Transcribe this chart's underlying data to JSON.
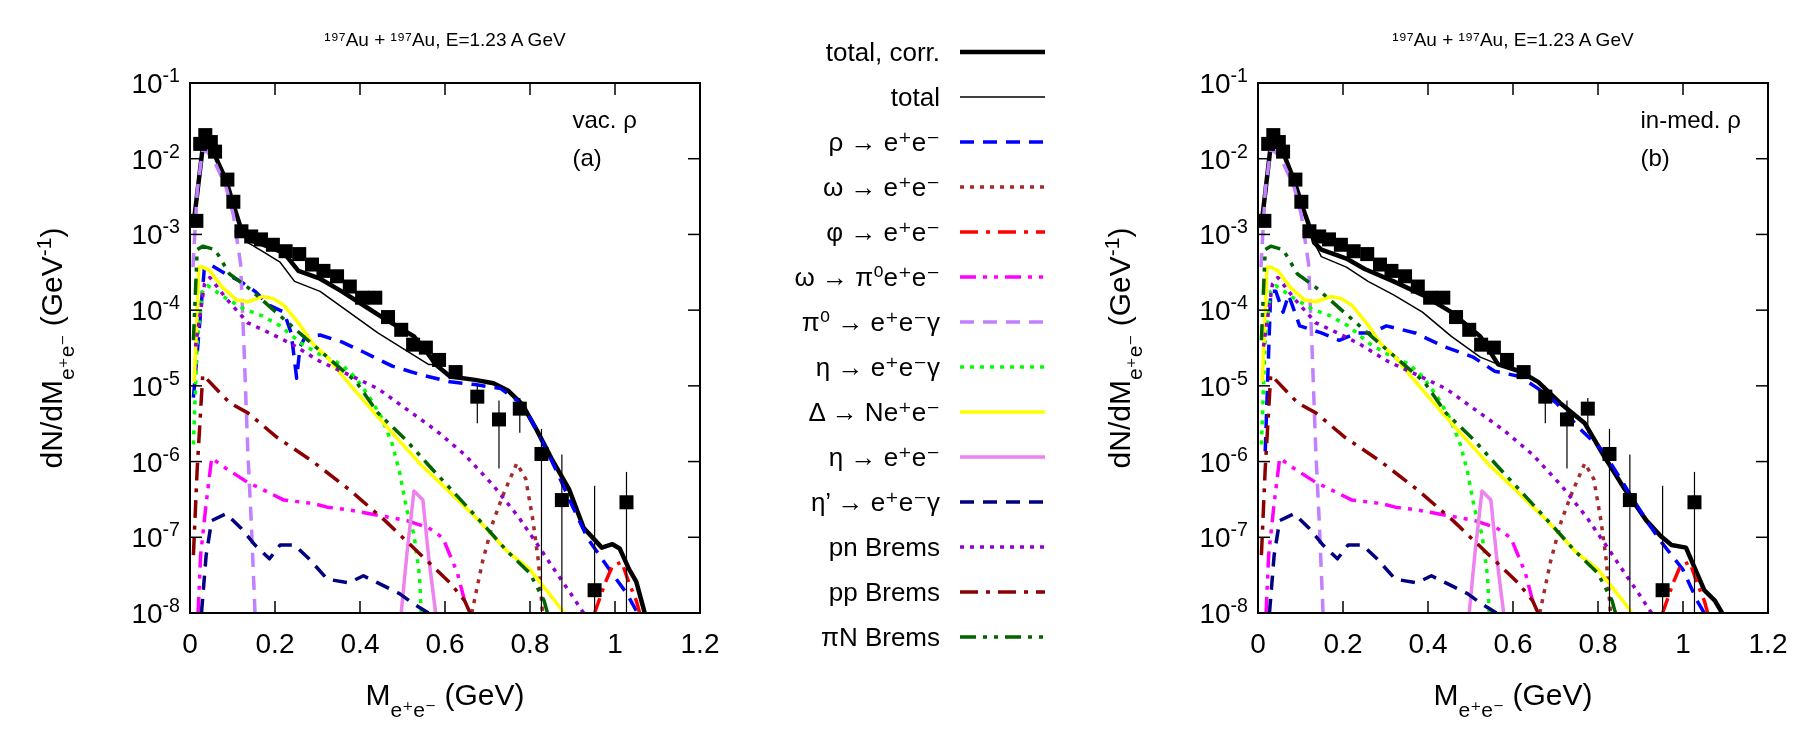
{
  "chart_data": [
    {
      "type": "line",
      "title": "¹⁹⁷Au + ¹⁹⁷Au, E=1.23 A GeV",
      "xlabel": "M$_{e⁺e⁻}$ (GeV)",
      "ylabel": "dN/dM$_{e⁺e⁻}$ (GeV$^{-1}$)",
      "log": "y",
      "legend": "right",
      "xlim": [
        0,
        1.2
      ],
      "ylim": [
        1e-08,
        0.1
      ],
      "xticks": [
        0,
        0.2,
        0.4,
        0.6,
        0.8,
        1,
        1.2
      ],
      "yticks": [
        {
          "value": 1e-08,
          "label": "10$^{-8}$"
        },
        {
          "value": 1e-07,
          "label": "10$^{-7}$"
        },
        {
          "value": 1e-06,
          "label": "10$^{-6}$"
        },
        {
          "value": 1e-05,
          "label": "10$^{-5}$"
        },
        {
          "value": 0.0001,
          "label": "10$^{-4}$"
        },
        {
          "value": 0.001,
          "label": "10$^{-3}$"
        },
        {
          "value": 0.01,
          "label": "10$^{-2}$"
        },
        {
          "value": 0.1,
          "label": "10$^{-1}$"
        }
      ],
      "annotations": [
        "vac. ρ",
        "(a)"
      ],
      "series": [
        {
          "name": "total, corr.",
          "type": "line",
          "color": "#000000",
          "line_style": "solid",
          "x": [
            0.008,
            0.03,
            0.038,
            0.059,
            0.085,
            0.102,
            0.119,
            0.136,
            0.17,
            0.221,
            0.255,
            0.306,
            0.357,
            0.408,
            0.459,
            0.527,
            0.561,
            0.578,
            0.612,
            0.671,
            0.714,
            0.748,
            0.782,
            0.816,
            0.85,
            0.892,
            0.926,
            0.969,
            0.994,
            1.011,
            1.033,
            1.05,
            1.07
          ],
          "values": [
            0.00131,
            0.0142,
            0.0157,
            0.0109,
            0.0052,
            0.0025,
            0.00125,
            0.00086,
            0.00074,
            0.00057,
            0.00033,
            0.00026,
            0.000177,
            0.000116,
            7.6e-05,
            4.5e-05,
            2.6e-05,
            1.92e-05,
            1.33e-05,
            1.2e-05,
            1.08e-05,
            8.7e-06,
            5.7e-06,
            2.6e-06,
            1.11e-06,
            4.3e-07,
            1.34e-07,
            7.3e-08,
            8.1e-08,
            7.1e-08,
            3.8e-08,
            2.6e-08,
            1e-08
          ]
        },
        {
          "name": "total",
          "type": "line",
          "color": "#000000",
          "line_style": "solid",
          "x": [
            0.008,
            0.03,
            0.038,
            0.059,
            0.085,
            0.102,
            0.119,
            0.136,
            0.17,
            0.212,
            0.246,
            0.306,
            0.374,
            0.442,
            0.51,
            0.561,
            0.578,
            0.612,
            0.671,
            0.714,
            0.748,
            0.782,
            0.816,
            0.85,
            0.892,
            0.926,
            0.969,
            0.994,
            1.011,
            1.033,
            1.05,
            1.07
          ],
          "values": [
            0.00131,
            0.0142,
            0.0157,
            0.0109,
            0.0052,
            0.0025,
            0.00125,
            0.00078,
            0.0006,
            0.00043,
            0.00024,
            0.000177,
            9.4e-05,
            5e-05,
            2.9e-05,
            1.92e-05,
            1.92e-05,
            1.33e-05,
            1.2e-05,
            1.08e-05,
            8.7e-06,
            5.7e-06,
            2.6e-06,
            1.11e-06,
            4.3e-07,
            1.34e-07,
            7.3e-08,
            8.1e-08,
            7.1e-08,
            3.8e-08,
            2.6e-08,
            1e-08
          ]
        },
        {
          "name": "ρ → e⁺e⁻",
          "type": "line",
          "color": "#0000ff",
          "line_style": "dashed",
          "x": [
            0.008,
            0.034,
            0.051,
            0.085,
            0.119,
            0.153,
            0.187,
            0.221,
            0.238,
            0.251,
            0.259,
            0.272,
            0.306,
            0.357,
            0.408,
            0.476,
            0.544,
            0.612,
            0.671,
            0.731,
            0.782,
            0.816,
            0.867,
            0.901,
            0.935,
            0.986,
            1.028,
            1.05
          ],
          "values": [
            7e-06,
            0.00037,
            0.00039,
            0.0003,
            0.00024,
            0.000177,
            0.000116,
            9.4e-05,
            5e-05,
            1.26e-05,
            3.3e-05,
            4.5e-05,
            4.7e-05,
            3.8e-05,
            2.8e-05,
            1.82e-05,
            1.4e-05,
            1.13e-05,
            1.04e-05,
            9.2e-06,
            5.7e-06,
            2.6e-06,
            6.6e-07,
            2.5e-07,
            9.8e-08,
            3.8e-08,
            1.8e-08,
            1.07e-08
          ]
        },
        {
          "name": "ω → e⁺e⁻",
          "type": "line",
          "color": "#a52a2a",
          "line_style": "dotted",
          "x": [
            0.663,
            0.688,
            0.714,
            0.739,
            0.769,
            0.79,
            0.807,
            0.82,
            0.829
          ],
          "values": [
            1e-08,
            4.7e-08,
            1.66e-07,
            3.9e-07,
            9.5e-07,
            5.9e-07,
            1.66e-07,
            4.7e-08,
            1.07e-08
          ]
        },
        {
          "name": "φ → e⁺e⁻",
          "type": "line",
          "color": "#ff0000",
          "line_style": "dashdot",
          "x": [
            0.952,
            0.977,
            0.994,
            1.016,
            1.033,
            1.05,
            1.058
          ],
          "values": [
            1e-08,
            2.5e-08,
            4.2e-08,
            4.7e-08,
            2.5e-08,
            1.46e-08,
            1e-08
          ]
        },
        {
          "name": "ω → π⁰e⁺e⁻",
          "type": "line",
          "color": "#ff00ff",
          "line_style": "dashdotdot",
          "x": [
            0.019,
            0.025,
            0.038,
            0.051,
            0.085,
            0.136,
            0.17,
            0.221,
            0.289,
            0.323,
            0.374,
            0.442,
            0.51,
            0.561,
            0.595,
            0.629,
            0.646
          ],
          "values": [
            1e-08,
            5.8e-08,
            2.8e-07,
            1.11e-06,
            8.1e-07,
            5.3e-07,
            4.3e-07,
            3.1e-07,
            2.8e-07,
            2.5e-07,
            2.3e-07,
            1.95e-07,
            1.66e-07,
            1.34e-07,
            9.8e-08,
            3.4e-08,
            1.46e-08
          ]
        },
        {
          "name": "π⁰ → e⁺e⁻γ",
          "type": "line",
          "color": "#c080ff",
          "line_style": "dashed",
          "x": [
            0.007,
            0.017,
            0.03,
            0.042,
            0.059,
            0.085,
            0.102,
            0.119,
            0.127,
            0.136,
            0.144,
            0.153
          ],
          "values": [
            0.00037,
            0.0038,
            0.0134,
            0.0121,
            0.0088,
            0.0042,
            0.00181,
            0.00041,
            3.3e-05,
            1.37e-06,
            1.66e-07,
            1e-08
          ]
        },
        {
          "name": "η → e⁺e⁻γ",
          "type": "line",
          "color": "#00ff00",
          "line_style": "dotted",
          "x": [
            0.008,
            0.017,
            0.03,
            0.042,
            0.085,
            0.127,
            0.17,
            0.212,
            0.263,
            0.306,
            0.357,
            0.391,
            0.425,
            0.45,
            0.476,
            0.493,
            0.51,
            0.527,
            0.54,
            0.544
          ],
          "values": [
            1.69e-06,
            4e-05,
            0.000177,
            0.00021,
            0.000143,
            0.000104,
            8.4e-05,
            6.2e-05,
            3.6e-05,
            2.6e-05,
            1.92e-05,
            1.26e-05,
            6.7e-06,
            3.9e-06,
            1.69e-06,
            7.3e-07,
            2.3e-07,
            1.09e-07,
            3.1e-08,
            1e-08
          ]
        },
        {
          "name": "Δ → Ne⁺e⁻",
          "type": "line",
          "color": "#ffff00",
          "line_style": "solid",
          "x": [
            0.01,
            0.021,
            0.03,
            0.047,
            0.076,
            0.11,
            0.136,
            0.17,
            0.195,
            0.221,
            0.255,
            0.289,
            0.323,
            0.357,
            0.391,
            0.442,
            0.493,
            0.544,
            0.612,
            0.68,
            0.748,
            0.799,
            0.833,
            0.858,
            0.88
          ],
          "values": [
            1.13e-05,
            0.00037,
            0.00037,
            0.00033,
            0.0002,
            0.000136,
            0.000129,
            0.000151,
            0.000143,
            0.000116,
            6.8e-05,
            3.6e-05,
            2.4e-05,
            1.4e-05,
            8.3e-06,
            3.9e-06,
            1.88e-06,
            9e-07,
            3.9e-07,
            1.66e-07,
            6.4e-08,
            3.8e-08,
            2.2e-08,
            1.46e-08,
            1e-08
          ]
        },
        {
          "name": "η → e⁺e⁻",
          "type": "line",
          "color": "#ee82ee",
          "line_style": "solid",
          "x": [
            0.497,
            0.51,
            0.527,
            0.548,
            0.561,
            0.578
          ],
          "values": [
            1e-08,
            5.8e-08,
            4.1e-07,
            3.1e-07,
            5.8e-08,
            1e-08
          ]
        },
        {
          "name": "η’ → e⁺e⁻γ",
          "type": "line",
          "color": "#000080",
          "line_style": "dashed",
          "x": [
            0.027,
            0.038,
            0.051,
            0.085,
            0.119,
            0.153,
            0.187,
            0.212,
            0.246,
            0.28,
            0.323,
            0.374,
            0.408,
            0.442,
            0.493,
            0.527,
            0.561
          ],
          "values": [
            1e-08,
            5.8e-08,
            1.66e-07,
            2.05e-07,
            1.34e-07,
            7.9e-08,
            5.2e-08,
            7.9e-08,
            7.9e-08,
            5.2e-08,
            2.8e-08,
            2.5e-08,
            3.1e-08,
            2.5e-08,
            1.8e-08,
            1.31e-08,
            1e-08
          ]
        },
        {
          "name": "pn Brems",
          "type": "line",
          "color": "#9400d3",
          "line_style": "dotted",
          "x": [
            0.013,
            0.034,
            0.047,
            0.085,
            0.136,
            0.187,
            0.238,
            0.306,
            0.374,
            0.442,
            0.51,
            0.578,
            0.646,
            0.714,
            0.773,
            0.824,
            0.867,
            0.901,
            0.926
          ],
          "values": [
            3.3e-05,
            0.00022,
            0.00027,
            0.000143,
            6.8e-05,
            5e-05,
            3.6e-05,
            2.1e-05,
            1.4e-05,
            9.2e-06,
            4.9e-06,
            2.6e-06,
            1.24e-06,
            4.8e-07,
            1.85e-07,
            7.1e-08,
            3.1e-08,
            1.63e-08,
            1e-08
          ]
        },
        {
          "name": "pp Brems",
          "type": "line",
          "color": "#8b0000",
          "line_style": "dashdot",
          "x": [
            0.008,
            0.017,
            0.03,
            0.093,
            0.136,
            0.204,
            0.289,
            0.374,
            0.459,
            0.544,
            0.612,
            0.646,
            0.659
          ],
          "values": [
            5.8e-08,
            8.1e-07,
            1.4e-05,
            6e-06,
            4.4e-06,
            2.1e-06,
            1e-06,
            4.3e-07,
            1.66e-07,
            5.8e-08,
            2.5e-08,
            1.46e-08,
            1e-08
          ]
        },
        {
          "name": "πN Brems",
          "type": "line",
          "color": "#006400",
          "line_style": "dashdotdot",
          "x": [
            0.008,
            0.017,
            0.03,
            0.059,
            0.093,
            0.136,
            0.221,
            0.306,
            0.391,
            0.442,
            0.51,
            0.561,
            0.629,
            0.697,
            0.748,
            0.799,
            0.833,
            0.841
          ],
          "values": [
            4e-05,
            0.00063,
            0.0007,
            0.00063,
            0.0003,
            0.0002,
            7.6e-05,
            2.9e-05,
            1.13e-05,
            4.4e-06,
            1.88e-06,
            9e-07,
            3.5e-07,
            1.34e-07,
            6.4e-08,
            3.4e-08,
            1.46e-08,
            1e-08
          ]
        },
        {
          "type": "scatter",
          "color": "#000000",
          "marker": "square",
          "x": [
            0.015,
            0.024,
            0.036,
            0.049,
            0.059,
            0.088,
            0.102,
            0.121,
            0.144,
            0.167,
            0.195,
            0.225,
            0.257,
            0.287,
            0.314,
            0.346,
            0.376,
            0.405,
            0.436,
            0.466,
            0.497,
            0.525,
            0.555,
            0.586,
            0.625,
            0.676,
            0.727,
            0.776,
            0.827,
            0.875,
            0.952,
            1.027
          ],
          "values": [
            0.00151,
            0.0157,
            0.0205,
            0.0166,
            0.0124,
            0.0053,
            0.0027,
            0.0011,
            0.00094,
            0.00086,
            0.00073,
            0.0006,
            0.00055,
            0.0004,
            0.00033,
            0.00028,
            0.000205,
            0.000146,
            0.000146,
            8.1e-05,
            5.5e-05,
            3.5e-05,
            3.2e-05,
            2.2e-05,
            1.52e-05,
            7.2e-06,
            3.6e-06,
            5e-06,
            1.26e-06,
            3.1e-07,
            2e-08,
            2.9e-07
          ],
          "errors": [
            null,
            null,
            null,
            null,
            null,
            null,
            null,
            null,
            null,
            null,
            null,
            null,
            null,
            null,
            null,
            null,
            null,
            null,
            null,
            null,
            null,
            null,
            null,
            null,
            null,
            [
              3.2e-06,
              1e-05
            ],
            [
              8.1e-07,
              6.4e-06
            ],
            [
              2.4e-06,
              6.9e-06
            ],
            [
              1e-08,
              2.7e-06
            ],
            [
              1e-08,
              1.24e-06
            ],
            [
              1e-08,
              4.8e-07
            ],
            [
              1e-08,
              7.3e-07
            ]
          ]
        }
      ]
    },
    {
      "type": "line",
      "title": "¹⁹⁷Au + ¹⁹⁷Au, E=1.23 A GeV",
      "xlabel": "M$_{e⁺e⁻}$ (GeV)",
      "ylabel": "dN/dM$_{e⁺e⁻}$ (GeV$^{-1}$)",
      "log": "y",
      "xlim": [
        0,
        1.2
      ],
      "ylim": [
        1e-08,
        0.1
      ],
      "xticks": [
        0,
        0.2,
        0.4,
        0.6,
        0.8,
        1,
        1.2
      ],
      "yticks": [
        {
          "value": 1e-08,
          "label": "10$^{-8}$"
        },
        {
          "value": 1e-07,
          "label": "10$^{-7}$"
        },
        {
          "value": 1e-06,
          "label": "10$^{-6}$"
        },
        {
          "value": 1e-05,
          "label": "10$^{-5}$"
        },
        {
          "value": 0.0001,
          "label": "10$^{-4}$"
        },
        {
          "value": 0.001,
          "label": "10$^{-3}$"
        },
        {
          "value": 0.01,
          "label": "10$^{-2}$"
        },
        {
          "value": 0.1,
          "label": "10$^{-1}$"
        }
      ],
      "annotations": [
        "in-med. ρ",
        "(b)"
      ],
      "series": [
        {
          "type": "line",
          "color": "#000000",
          "line_style": "solid",
          "x": [
            0.008,
            0.03,
            0.038,
            0.059,
            0.085,
            0.106,
            0.123,
            0.132,
            0.149,
            0.208,
            0.251,
            0.319,
            0.387,
            0.455,
            0.523,
            0.565,
            0.616,
            0.659,
            0.71,
            0.769,
            0.812,
            0.863,
            0.914,
            0.948,
            0.973,
            1.007,
            1.05,
            1.075,
            1.092
          ],
          "values": [
            0.00131,
            0.0149,
            0.0166,
            0.0121,
            0.0052,
            0.0022,
            0.00118,
            0.00078,
            0.00063,
            0.00048,
            0.00035,
            0.00024,
            0.000159,
            9.4e-05,
            4.5e-05,
            1.92e-05,
            1.56e-05,
            1.13e-05,
            6e-06,
            3.2e-06,
            1.24e-06,
            4.3e-07,
            1.66e-07,
            1.03e-07,
            7.9e-08,
            7.3e-08,
            2e-08,
            1.46e-08,
            1e-08
          ]
        },
        {
          "type": "line",
          "color": "#000000",
          "line_style": "solid",
          "x": [
            0.008,
            0.03,
            0.038,
            0.059,
            0.085,
            0.106,
            0.123,
            0.132,
            0.149,
            0.208,
            0.259,
            0.319,
            0.387,
            0.455,
            0.523,
            0.565,
            0.616,
            0.659,
            0.71,
            0.769,
            0.812,
            0.863,
            0.914,
            0.948,
            0.973,
            1.007,
            1.05,
            1.075,
            1.092
          ],
          "values": [
            0.00131,
            0.0149,
            0.0166,
            0.0121,
            0.0052,
            0.0022,
            0.00118,
            0.00078,
            0.00051,
            0.00037,
            0.00024,
            0.000159,
            9.4e-05,
            4.5e-05,
            2.4e-05,
            1.92e-05,
            1.56e-05,
            1.13e-05,
            6e-06,
            3.2e-06,
            1.24e-06,
            4.3e-07,
            1.66e-07,
            1.03e-07,
            7.9e-08,
            7.3e-08,
            2e-08,
            1.46e-08,
            1e-08
          ]
        },
        {
          "type": "line",
          "color": "#0000ff",
          "line_style": "dashed",
          "x": [
            0.017,
            0.03,
            0.042,
            0.059,
            0.072,
            0.098,
            0.149,
            0.191,
            0.234,
            0.268,
            0.302,
            0.37,
            0.438,
            0.506,
            0.557,
            0.616,
            0.659,
            0.701,
            0.761,
            0.812,
            0.863,
            0.914,
            0.948,
            0.999,
            1.033,
            1.05
          ],
          "values": [
            1.37e-06,
            0.000177,
            0.000177,
            9.4e-05,
            0.000159,
            6.2e-05,
            5e-05,
            4e-05,
            5e-05,
            5e-05,
            6.2e-05,
            5e-05,
            3.3e-05,
            2.4e-05,
            1.56e-05,
            1.33e-05,
            9.2e-06,
            6e-06,
            2.6e-06,
            1.37e-06,
            4.8e-07,
            1.66e-07,
            8.8e-08,
            3.8e-08,
            1.46e-08,
            1e-08
          ]
        },
        {
          "type": "line",
          "color": "#a52a2a",
          "line_style": "dotted",
          "x": [
            0.663,
            0.688,
            0.714,
            0.739,
            0.769,
            0.79,
            0.807,
            0.82,
            0.829
          ],
          "values": [
            1e-08,
            4.7e-08,
            1.66e-07,
            3.9e-07,
            9.5e-07,
            5.9e-07,
            1.66e-07,
            4.7e-08,
            1.07e-08
          ]
        },
        {
          "type": "line",
          "color": "#ff0000",
          "line_style": "dashdot",
          "x": [
            0.952,
            0.977,
            0.994,
            1.016,
            1.033,
            1.05,
            1.058
          ],
          "values": [
            1e-08,
            2.5e-08,
            4.2e-08,
            4.7e-08,
            2.5e-08,
            1.46e-08,
            1e-08
          ]
        },
        {
          "type": "line",
          "color": "#ff00ff",
          "line_style": "dashdotdot",
          "x": [
            0.019,
            0.025,
            0.038,
            0.051,
            0.085,
            0.136,
            0.17,
            0.221,
            0.289,
            0.323,
            0.374,
            0.442,
            0.51,
            0.561,
            0.595,
            0.629,
            0.646
          ],
          "values": [
            1e-08,
            5.8e-08,
            2.8e-07,
            1.11e-06,
            8.1e-07,
            5.3e-07,
            4.3e-07,
            3.1e-07,
            2.8e-07,
            2.5e-07,
            2.3e-07,
            1.95e-07,
            1.66e-07,
            1.34e-07,
            9.8e-08,
            3.4e-08,
            1.46e-08
          ]
        },
        {
          "type": "line",
          "color": "#c080ff",
          "line_style": "dashed",
          "x": [
            0.007,
            0.017,
            0.03,
            0.042,
            0.059,
            0.085,
            0.102,
            0.119,
            0.127,
            0.136,
            0.144,
            0.153
          ],
          "values": [
            0.00037,
            0.0038,
            0.0134,
            0.0121,
            0.0088,
            0.0042,
            0.00181,
            0.00041,
            3.3e-05,
            1.37e-06,
            1.66e-07,
            1e-08
          ]
        },
        {
          "type": "line",
          "color": "#00ff00",
          "line_style": "dotted",
          "x": [
            0.008,
            0.017,
            0.03,
            0.042,
            0.085,
            0.127,
            0.17,
            0.212,
            0.263,
            0.306,
            0.357,
            0.391,
            0.425,
            0.45,
            0.476,
            0.493,
            0.51,
            0.527,
            0.54,
            0.544
          ],
          "values": [
            1.69e-06,
            4e-05,
            0.000177,
            0.00021,
            0.000143,
            0.000104,
            8.4e-05,
            6.2e-05,
            3.6e-05,
            2.6e-05,
            1.92e-05,
            1.26e-05,
            6.7e-06,
            3.9e-06,
            1.69e-06,
            7.3e-07,
            2.3e-07,
            1.09e-07,
            3.1e-08,
            1e-08
          ]
        },
        {
          "type": "line",
          "color": "#ffff00",
          "line_style": "solid",
          "x": [
            0.01,
            0.021,
            0.03,
            0.047,
            0.076,
            0.11,
            0.136,
            0.17,
            0.195,
            0.221,
            0.255,
            0.289,
            0.323,
            0.357,
            0.391,
            0.442,
            0.493,
            0.544,
            0.612,
            0.68,
            0.748,
            0.799,
            0.833,
            0.858,
            0.88
          ],
          "values": [
            1.13e-05,
            0.00037,
            0.00037,
            0.00033,
            0.0002,
            0.000136,
            0.000129,
            0.000151,
            0.000143,
            0.000116,
            6.8e-05,
            3.6e-05,
            2.4e-05,
            1.4e-05,
            8.3e-06,
            3.9e-06,
            1.88e-06,
            9e-07,
            3.9e-07,
            1.66e-07,
            6.4e-08,
            3.8e-08,
            2.2e-08,
            1.46e-08,
            1e-08
          ]
        },
        {
          "type": "line",
          "color": "#ee82ee",
          "line_style": "solid",
          "x": [
            0.497,
            0.51,
            0.527,
            0.548,
            0.561,
            0.578
          ],
          "values": [
            1e-08,
            5.8e-08,
            4.1e-07,
            3.1e-07,
            5.8e-08,
            1e-08
          ]
        },
        {
          "type": "line",
          "color": "#000080",
          "line_style": "dashed",
          "x": [
            0.027,
            0.038,
            0.051,
            0.085,
            0.119,
            0.153,
            0.187,
            0.212,
            0.246,
            0.28,
            0.323,
            0.374,
            0.408,
            0.442,
            0.493,
            0.527,
            0.561
          ],
          "values": [
            1e-08,
            5.8e-08,
            1.66e-07,
            2.05e-07,
            1.34e-07,
            7.9e-08,
            5.2e-08,
            7.9e-08,
            7.9e-08,
            5.2e-08,
            2.8e-08,
            2.5e-08,
            3.1e-08,
            2.5e-08,
            1.8e-08,
            1.31e-08,
            1e-08
          ]
        },
        {
          "type": "line",
          "color": "#9400d3",
          "line_style": "dotted",
          "x": [
            0.013,
            0.034,
            0.047,
            0.085,
            0.136,
            0.187,
            0.238,
            0.306,
            0.374,
            0.442,
            0.51,
            0.578,
            0.646,
            0.714,
            0.773,
            0.824,
            0.867,
            0.901,
            0.926
          ],
          "values": [
            3.3e-05,
            0.00022,
            0.00027,
            0.000143,
            6.8e-05,
            5e-05,
            3.6e-05,
            2.1e-05,
            1.4e-05,
            9.2e-06,
            4.9e-06,
            2.6e-06,
            1.24e-06,
            4.8e-07,
            1.85e-07,
            7.1e-08,
            3.1e-08,
            1.63e-08,
            1e-08
          ]
        },
        {
          "type": "line",
          "color": "#8b0000",
          "line_style": "dashdot",
          "x": [
            0.008,
            0.017,
            0.03,
            0.093,
            0.136,
            0.204,
            0.289,
            0.374,
            0.459,
            0.544,
            0.612,
            0.646,
            0.659
          ],
          "values": [
            5.8e-08,
            8.1e-07,
            1.4e-05,
            6e-06,
            4.4e-06,
            2.1e-06,
            1e-06,
            4.3e-07,
            1.66e-07,
            5.8e-08,
            2.5e-08,
            1.46e-08,
            1e-08
          ]
        },
        {
          "type": "line",
          "color": "#006400",
          "line_style": "dashdotdot",
          "x": [
            0.008,
            0.017,
            0.03,
            0.059,
            0.093,
            0.136,
            0.221,
            0.306,
            0.391,
            0.442,
            0.51,
            0.561,
            0.629,
            0.697,
            0.748,
            0.799,
            0.833,
            0.841
          ],
          "values": [
            4e-05,
            0.00063,
            0.0007,
            0.00063,
            0.0003,
            0.0002,
            7.6e-05,
            2.9e-05,
            1.13e-05,
            4.4e-06,
            1.88e-06,
            9e-07,
            3.5e-07,
            1.34e-07,
            6.4e-08,
            3.4e-08,
            1.46e-08,
            1e-08
          ]
        },
        {
          "type": "scatter",
          "color": "#000000",
          "marker": "square",
          "x": [
            0.015,
            0.024,
            0.036,
            0.049,
            0.059,
            0.088,
            0.102,
            0.121,
            0.144,
            0.167,
            0.195,
            0.225,
            0.257,
            0.287,
            0.314,
            0.346,
            0.376,
            0.405,
            0.436,
            0.466,
            0.497,
            0.525,
            0.555,
            0.586,
            0.625,
            0.676,
            0.727,
            0.776,
            0.827,
            0.875,
            0.952,
            1.027
          ],
          "values": [
            0.00151,
            0.0157,
            0.0205,
            0.0166,
            0.0124,
            0.0053,
            0.0027,
            0.0011,
            0.00094,
            0.00086,
            0.00073,
            0.0006,
            0.00055,
            0.0004,
            0.00033,
            0.00028,
            0.000205,
            0.000146,
            0.000146,
            8.1e-05,
            5.5e-05,
            3.5e-05,
            3.2e-05,
            2.2e-05,
            1.52e-05,
            7.2e-06,
            3.6e-06,
            5e-06,
            1.26e-06,
            3.1e-07,
            2e-08,
            2.9e-07
          ],
          "errors": [
            null,
            null,
            null,
            null,
            null,
            null,
            null,
            null,
            null,
            null,
            null,
            null,
            null,
            null,
            null,
            null,
            null,
            null,
            null,
            null,
            null,
            null,
            null,
            null,
            null,
            [
              3.2e-06,
              1e-05
            ],
            [
              8.1e-07,
              6.4e-06
            ],
            [
              2.4e-06,
              6.9e-06
            ],
            [
              1e-08,
              2.7e-06
            ],
            [
              1e-08,
              1.24e-06
            ],
            [
              1e-08,
              4.8e-07
            ],
            [
              1e-08,
              7.3e-07
            ]
          ]
        }
      ]
    }
  ]
}
